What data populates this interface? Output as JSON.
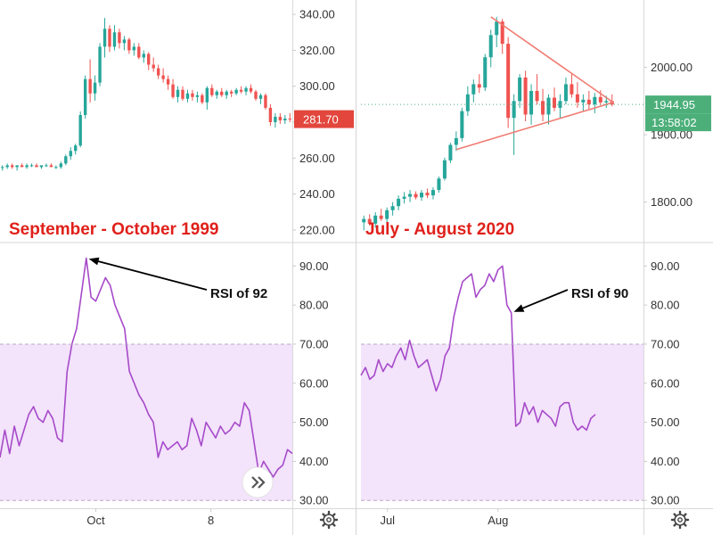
{
  "colors": {
    "up": "#26a69a",
    "down": "#ef5350",
    "rsi_line": "#a64ac9",
    "rsi_band": "#f3e3fb",
    "triangle": "#f07b72",
    "last_price_1999": "#e2463c",
    "last_price_2020": "#4caf7a",
    "caption": "#e0201a"
  },
  "gear_icon": "gear-icon",
  "next_icon": "double-chevron-right-icon",
  "chart_data": [
    {
      "type": "candlestick",
      "caption": "September - October 1999",
      "y_ticks": [
        "340.00",
        "320.00",
        "300.00",
        "280.00",
        "260.00",
        "240.00",
        "220.00"
      ],
      "y_tick_values": [
        340,
        320,
        300,
        280,
        260,
        240,
        220
      ],
      "ylim": [
        213,
        348
      ],
      "last_price_label": "281.70",
      "last_price": 281.7,
      "candles": [
        [
          255,
          256,
          253,
          255
        ],
        [
          255,
          257,
          254,
          256
        ],
        [
          256,
          257,
          254,
          255
        ],
        [
          255,
          256,
          253,
          256
        ],
        [
          256,
          257,
          255,
          255
        ],
        [
          255,
          257,
          254,
          256
        ],
        [
          256,
          257,
          255,
          256
        ],
        [
          256,
          257,
          255,
          255
        ],
        [
          255,
          256,
          254,
          256
        ],
        [
          256,
          257,
          255,
          256
        ],
        [
          256,
          257,
          255,
          255
        ],
        [
          255,
          256,
          254,
          255
        ],
        [
          255,
          258,
          254,
          257
        ],
        [
          257,
          262,
          256,
          261
        ],
        [
          261,
          266,
          259,
          264
        ],
        [
          264,
          268,
          262,
          267
        ],
        [
          267,
          286,
          266,
          284
        ],
        [
          284,
          306,
          282,
          304
        ],
        [
          304,
          315,
          291,
          296
        ],
        [
          296,
          306,
          292,
          302
        ],
        [
          302,
          324,
          300,
          322
        ],
        [
          322,
          338,
          316,
          332
        ],
        [
          332,
          334,
          319,
          322
        ],
        [
          322,
          334,
          320,
          330
        ],
        [
          330,
          332,
          321,
          324
        ],
        [
          324,
          328,
          320,
          326
        ],
        [
          326,
          327,
          318,
          320
        ],
        [
          320,
          324,
          317,
          322
        ],
        [
          322,
          324,
          315,
          316
        ],
        [
          316,
          320,
          313,
          318
        ],
        [
          318,
          319,
          309,
          312
        ],
        [
          312,
          316,
          308,
          310
        ],
        [
          310,
          312,
          304,
          306
        ],
        [
          306,
          310,
          302,
          304
        ],
        [
          304,
          306,
          298,
          301
        ],
        [
          301,
          304,
          293,
          294
        ],
        [
          294,
          300,
          291,
          298
        ],
        [
          298,
          300,
          292,
          293
        ],
        [
          293,
          298,
          291,
          296
        ],
        [
          296,
          298,
          292,
          294
        ],
        [
          294,
          297,
          291,
          295
        ],
        [
          295,
          296,
          290,
          291
        ],
        [
          291,
          300,
          287,
          299
        ],
        [
          299,
          301,
          294,
          295
        ],
        [
          295,
          298,
          293,
          297
        ],
        [
          297,
          299,
          294,
          295
        ],
        [
          295,
          298,
          293,
          297
        ],
        [
          297,
          298,
          294,
          296
        ],
        [
          296,
          299,
          295,
          298
        ],
        [
          298,
          300,
          296,
          297
        ],
        [
          297,
          300,
          295,
          299
        ],
        [
          299,
          301,
          296,
          297
        ],
        [
          297,
          298,
          292,
          293
        ],
        [
          293,
          296,
          290,
          295
        ],
        [
          295,
          296,
          287,
          288
        ],
        [
          288,
          290,
          278,
          280
        ],
        [
          280,
          285,
          277,
          283
        ],
        [
          283,
          285,
          279,
          281
        ],
        [
          281,
          284,
          279,
          282
        ],
        [
          282,
          285,
          280,
          281.7
        ]
      ]
    },
    {
      "type": "candlestick",
      "caption": "July - August 2020",
      "y_ticks": [
        "2000.00",
        "1900.00",
        "1800.00"
      ],
      "y_tick_values": [
        2000,
        1900,
        1800
      ],
      "ylim": [
        1740,
        2100
      ],
      "last_price_label": "1944.95",
      "last_price": 1944.95,
      "countdown_label": "13:58:02",
      "candles": [
        [
          1770,
          1780,
          1758,
          1775
        ],
        [
          1775,
          1782,
          1765,
          1768
        ],
        [
          1768,
          1785,
          1762,
          1780
        ],
        [
          1780,
          1790,
          1772,
          1775
        ],
        [
          1775,
          1792,
          1770,
          1788
        ],
        [
          1788,
          1800,
          1780,
          1794
        ],
        [
          1794,
          1810,
          1788,
          1805
        ],
        [
          1805,
          1815,
          1798,
          1808
        ],
        [
          1808,
          1818,
          1800,
          1812
        ],
        [
          1812,
          1816,
          1804,
          1807
        ],
        [
          1807,
          1818,
          1802,
          1814
        ],
        [
          1814,
          1820,
          1806,
          1810
        ],
        [
          1810,
          1822,
          1804,
          1818
        ],
        [
          1818,
          1838,
          1814,
          1835
        ],
        [
          1835,
          1866,
          1832,
          1862
        ],
        [
          1862,
          1888,
          1858,
          1885
        ],
        [
          1885,
          1905,
          1876,
          1895
        ],
        [
          1895,
          1940,
          1890,
          1935
        ],
        [
          1935,
          1972,
          1928,
          1960
        ],
        [
          1960,
          1982,
          1948,
          1975
        ],
        [
          1975,
          1990,
          1962,
          1970
        ],
        [
          1970,
          2020,
          1965,
          2015
        ],
        [
          2015,
          2056,
          2000,
          2048
        ],
        [
          2048,
          2075,
          2030,
          2068
        ],
        [
          2068,
          2072,
          2020,
          2035
        ],
        [
          2035,
          2045,
          1910,
          1925
        ],
        [
          1925,
          1960,
          1870,
          1950
        ],
        [
          1950,
          1990,
          1940,
          1985
        ],
        [
          1985,
          1995,
          1920,
          1930
        ],
        [
          1930,
          1975,
          1915,
          1965
        ],
        [
          1965,
          1990,
          1945,
          1950
        ],
        [
          1950,
          1968,
          1920,
          1930
        ],
        [
          1930,
          1960,
          1915,
          1955
        ],
        [
          1955,
          1970,
          1935,
          1940
        ],
        [
          1940,
          1960,
          1925,
          1950
        ],
        [
          1950,
          1985,
          1945,
          1975
        ],
        [
          1975,
          1990,
          1955,
          1960
        ],
        [
          1960,
          1978,
          1940,
          1948
        ],
        [
          1948,
          1960,
          1935,
          1952
        ],
        [
          1952,
          1965,
          1938,
          1945
        ],
        [
          1945,
          1962,
          1932,
          1956
        ],
        [
          1956,
          1966,
          1944,
          1948
        ],
        [
          1948,
          1958,
          1940,
          1950
        ],
        [
          1950,
          1960,
          1942,
          1944.95
        ]
      ]
    },
    {
      "type": "line",
      "y_ticks": [
        "90.00",
        "80.00",
        "70.00",
        "60.00",
        "50.00",
        "40.00",
        "30.00"
      ],
      "y_tick_values": [
        90,
        80,
        70,
        60,
        50,
        40,
        30
      ],
      "ylim": [
        28,
        96
      ],
      "band": [
        30,
        70
      ],
      "x_ticks": [
        "Oct",
        "8"
      ],
      "x_tick_index": [
        20,
        44
      ],
      "annotation": "RSI of 92",
      "peak_index": 18,
      "values": [
        41,
        48,
        42,
        49,
        44,
        48,
        52,
        54,
        51,
        50,
        53,
        51,
        46,
        45,
        63,
        70,
        74,
        83,
        92,
        82,
        81,
        84,
        87,
        85,
        80,
        77,
        74,
        63,
        60,
        57,
        55,
        52,
        50,
        41,
        45,
        43,
        44,
        45,
        43,
        44,
        51,
        48,
        44,
        50,
        48,
        46,
        49,
        47,
        48,
        50,
        49,
        55,
        53,
        45,
        37,
        40,
        38,
        36,
        38,
        39,
        43,
        42
      ]
    },
    {
      "type": "line",
      "y_ticks": [
        "90.00",
        "80.00",
        "70.00",
        "60.00",
        "50.00",
        "40.00",
        "30.00"
      ],
      "y_tick_values": [
        90,
        80,
        70,
        60,
        50,
        40,
        30
      ],
      "ylim": [
        28,
        96
      ],
      "band": [
        30,
        70
      ],
      "x_ticks": [
        "Jul",
        "Aug"
      ],
      "x_tick_index": [
        6,
        31
      ],
      "annotation": "RSI of 90",
      "peak_index": 34,
      "values": [
        62,
        64,
        61,
        62,
        66,
        63,
        65,
        64,
        67,
        69,
        66,
        71,
        67,
        64,
        65,
        66,
        62,
        58,
        61,
        67,
        69,
        77,
        82,
        86,
        87,
        88,
        82,
        84,
        85,
        88,
        86,
        89,
        90,
        80,
        78,
        49,
        50,
        55,
        52,
        54,
        50,
        53,
        52,
        51,
        49,
        54,
        55,
        55,
        50,
        48,
        49,
        48,
        51,
        52
      ]
    }
  ]
}
